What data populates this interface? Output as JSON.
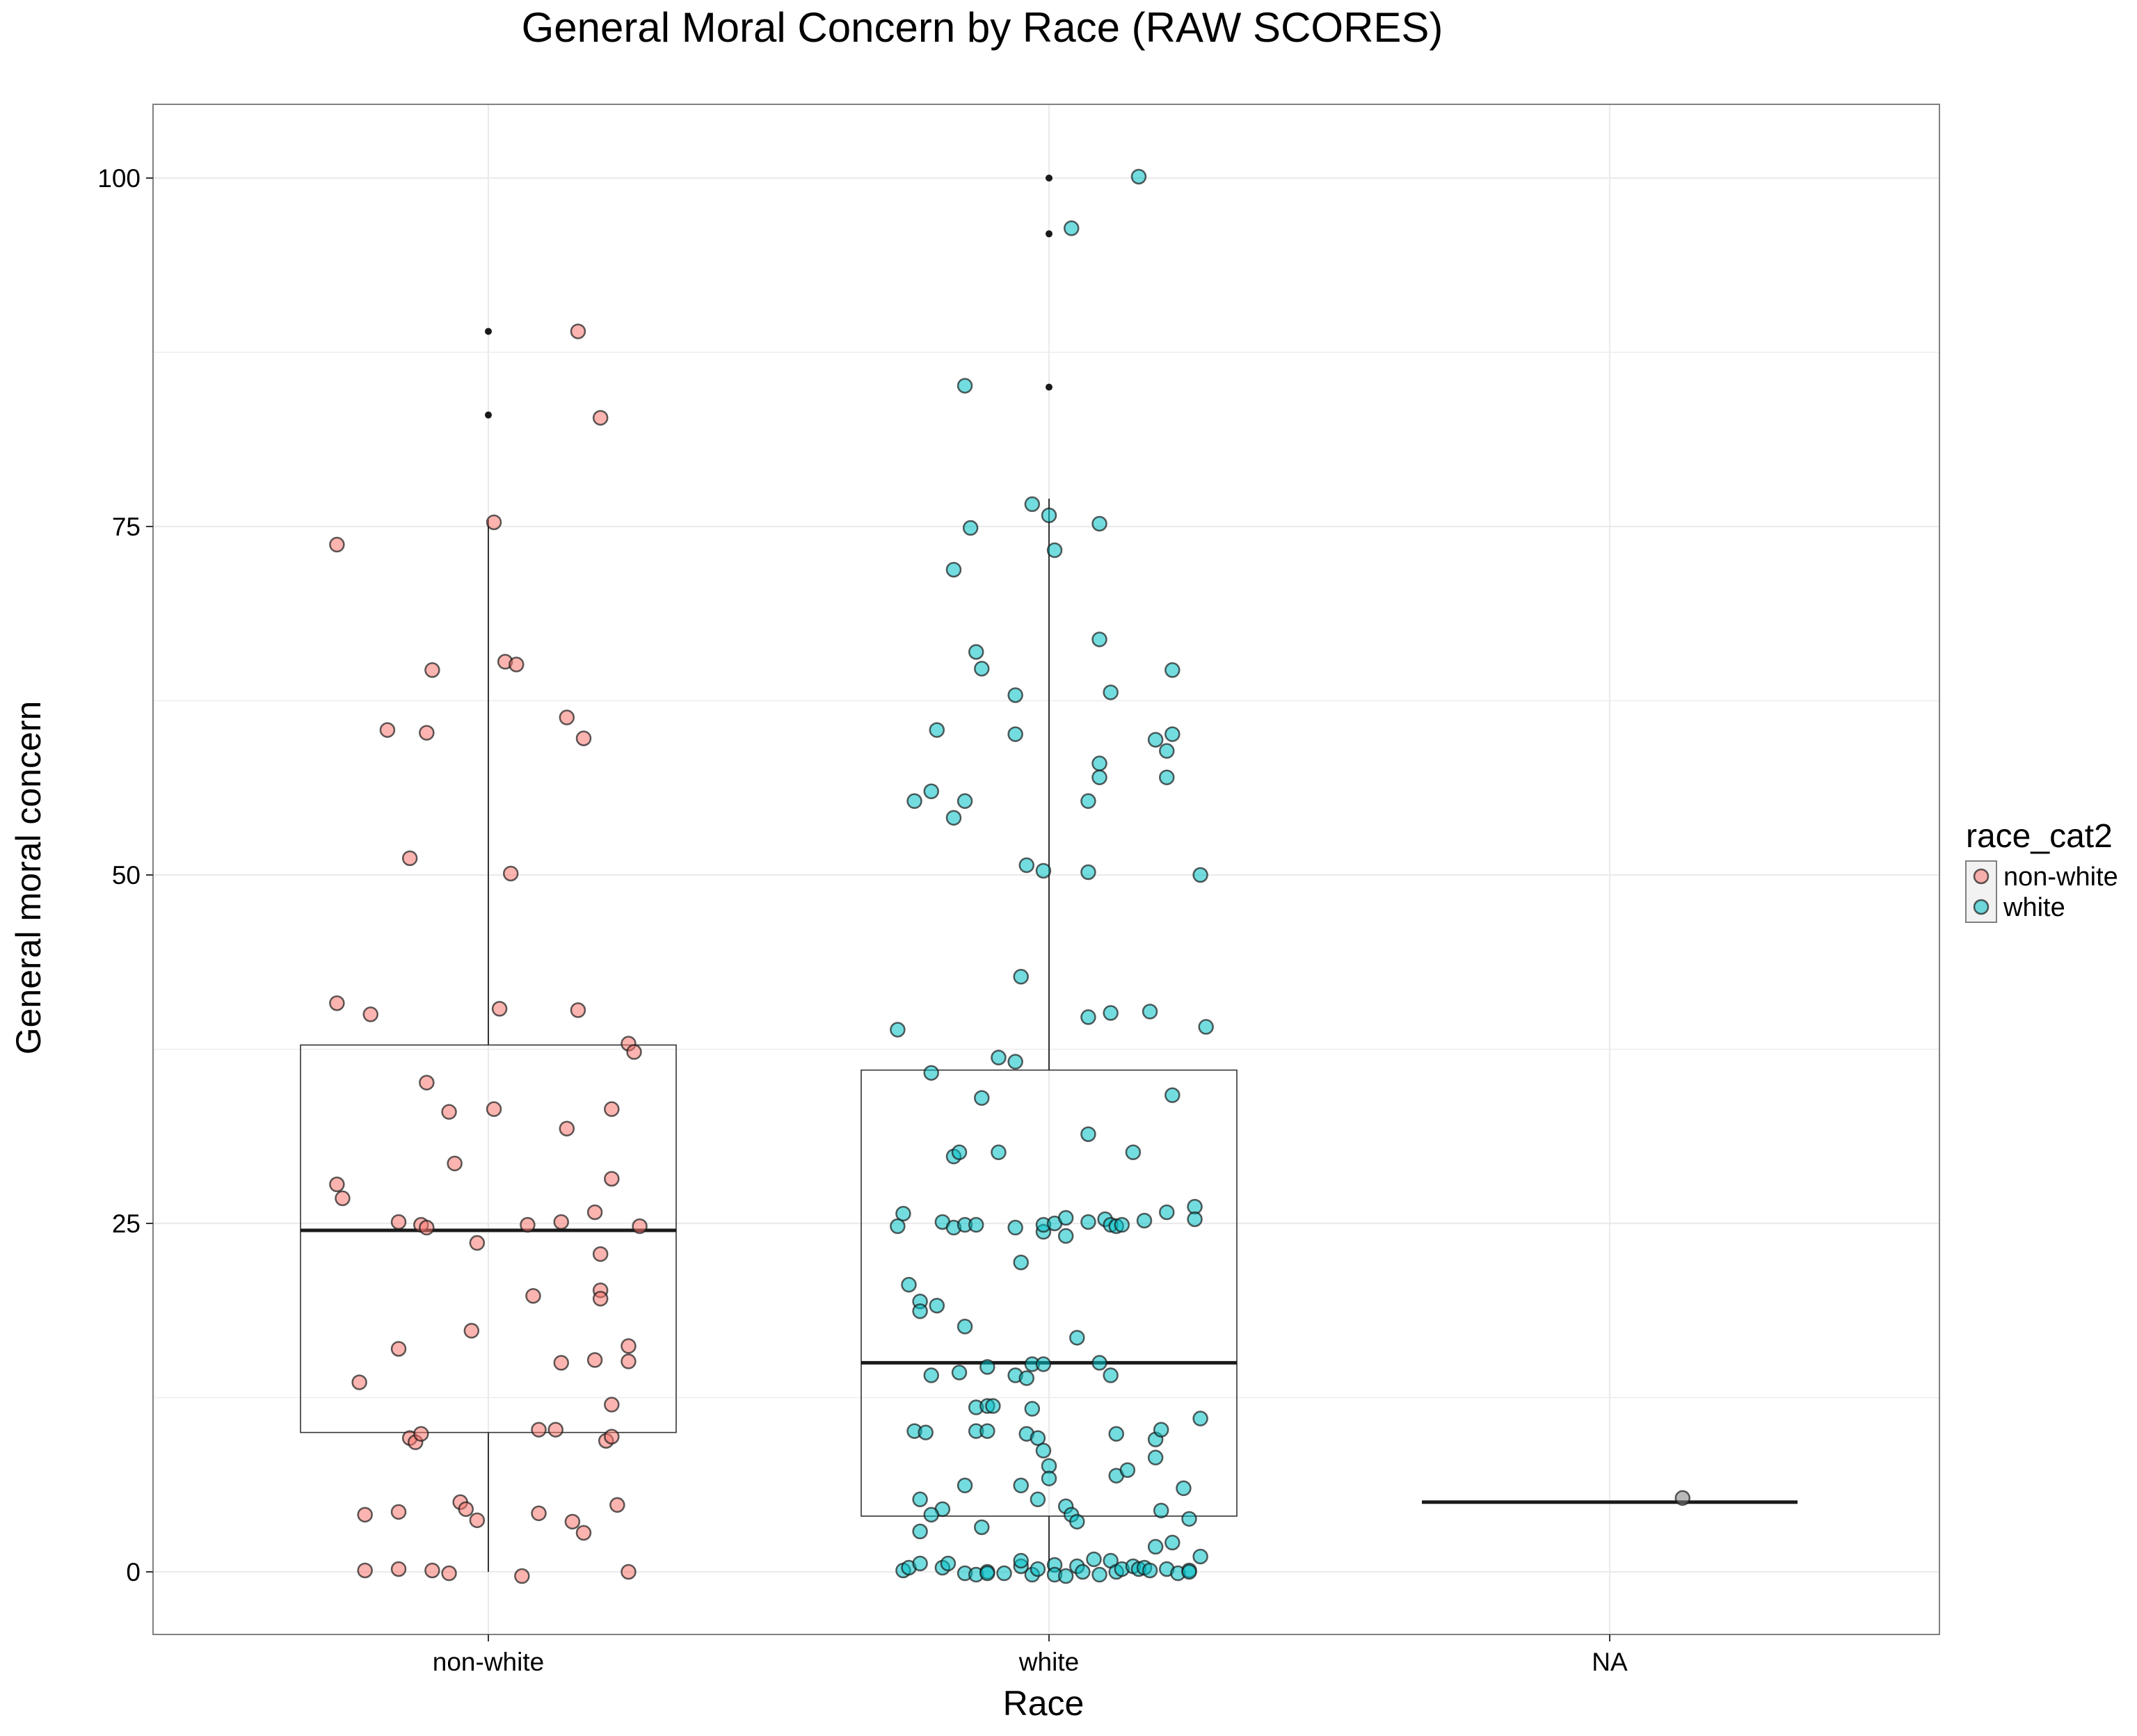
{
  "chart_data": {
    "type": "boxplot-with-jitter",
    "title": "General Moral Concern by Race (RAW SCORES)",
    "xlabel": "Race",
    "ylabel": "General moral concern",
    "categories": [
      "non-white",
      "white",
      "NA"
    ],
    "ylim": [
      -5,
      105
    ],
    "yticks": [
      0,
      25,
      50,
      75,
      100
    ],
    "grid": true,
    "legend": {
      "title": "race_cat2",
      "position": "right",
      "entries": [
        {
          "label": "non-white",
          "color": "#F8766D"
        },
        {
          "label": "white",
          "color": "#00BFC4"
        }
      ]
    },
    "colors": {
      "non-white": "#F8766D",
      "white": "#00BFC4",
      "NA": "#7F7F7F",
      "panel_border": "#808080",
      "grid": "#ebebeb"
    },
    "boxes": [
      {
        "category": "non-white",
        "q1": 10,
        "median": 24.5,
        "q3": 37.8,
        "whisker_low": 0,
        "whisker_high": 75.5,
        "outliers": [
          83,
          89
        ]
      },
      {
        "category": "white",
        "q1": 4,
        "median": 15,
        "q3": 36,
        "whisker_low": 0,
        "whisker_high": 77,
        "outliers": [
          85,
          96,
          100
        ]
      },
      {
        "category": "NA",
        "q1": 5,
        "median": 5,
        "q3": 5,
        "whisker_low": 5,
        "whisker_high": 5,
        "outliers": []
      }
    ],
    "points": {
      "non-white": [
        [
          -0.27,
          73.7
        ],
        [
          -0.18,
          60.4
        ],
        [
          -0.11,
          60.2
        ],
        [
          -0.1,
          64.7
        ],
        [
          -0.14,
          51.2
        ],
        [
          0.01,
          75.3
        ],
        [
          0.03,
          65.3
        ],
        [
          0.05,
          65.1
        ],
        [
          0.04,
          50.1
        ],
        [
          0.16,
          89.0
        ],
        [
          0.2,
          82.8
        ],
        [
          0.14,
          61.3
        ],
        [
          0.17,
          59.8
        ],
        [
          -0.27,
          40.8
        ],
        [
          -0.21,
          40.0
        ],
        [
          0.02,
          40.4
        ],
        [
          0.16,
          40.3
        ],
        [
          0.25,
          37.9
        ],
        [
          0.26,
          37.3
        ],
        [
          -0.11,
          35.1
        ],
        [
          -0.07,
          33.0
        ],
        [
          0.01,
          33.2
        ],
        [
          0.14,
          31.8
        ],
        [
          0.22,
          33.2
        ],
        [
          -0.06,
          29.3
        ],
        [
          -0.27,
          27.8
        ],
        [
          -0.26,
          26.8
        ],
        [
          0.22,
          28.2
        ],
        [
          -0.16,
          25.1
        ],
        [
          -0.12,
          24.9
        ],
        [
          -0.11,
          24.7
        ],
        [
          -0.02,
          23.6
        ],
        [
          0.07,
          24.9
        ],
        [
          0.13,
          25.1
        ],
        [
          0.19,
          25.8
        ],
        [
          0.2,
          22.8
        ],
        [
          0.27,
          24.8
        ],
        [
          0.2,
          20.2
        ],
        [
          0.2,
          19.6
        ],
        [
          0.08,
          19.8
        ],
        [
          -0.03,
          17.3
        ],
        [
          -0.16,
          16.0
        ],
        [
          -0.23,
          13.6
        ],
        [
          0.13,
          15.0
        ],
        [
          0.19,
          15.2
        ],
        [
          0.25,
          16.2
        ],
        [
          0.25,
          15.1
        ],
        [
          0.22,
          12.0
        ],
        [
          -0.14,
          9.6
        ],
        [
          -0.13,
          9.3
        ],
        [
          -0.12,
          9.9
        ],
        [
          0.09,
          10.2
        ],
        [
          0.12,
          10.2
        ],
        [
          0.21,
          9.4
        ],
        [
          0.22,
          9.7
        ],
        [
          -0.22,
          4.1
        ],
        [
          -0.16,
          4.3
        ],
        [
          -0.05,
          5.0
        ],
        [
          -0.04,
          4.5
        ],
        [
          -0.02,
          3.7
        ],
        [
          0.09,
          4.2
        ],
        [
          0.15,
          3.6
        ],
        [
          0.17,
          2.8
        ],
        [
          0.23,
          4.8
        ],
        [
          -0.22,
          0.1
        ],
        [
          -0.16,
          0.2
        ],
        [
          -0.1,
          0.1
        ],
        [
          -0.07,
          -0.1
        ],
        [
          0.06,
          -0.3
        ],
        [
          0.25,
          0.0
        ]
      ],
      "white": [
        [
          0.16,
          100.1
        ],
        [
          0.04,
          96.4
        ],
        [
          -0.15,
          85.1
        ],
        [
          -0.03,
          76.6
        ],
        [
          0.0,
          75.8
        ],
        [
          0.09,
          75.2
        ],
        [
          -0.14,
          74.9
        ],
        [
          0.01,
          73.3
        ],
        [
          -0.17,
          71.9
        ],
        [
          0.09,
          66.9
        ],
        [
          -0.13,
          66.0
        ],
        [
          -0.12,
          64.8
        ],
        [
          0.22,
          64.7
        ],
        [
          0.11,
          63.1
        ],
        [
          -0.06,
          62.9
        ],
        [
          -0.2,
          60.4
        ],
        [
          -0.06,
          60.1
        ],
        [
          0.19,
          59.7
        ],
        [
          0.22,
          60.1
        ],
        [
          0.21,
          58.9
        ],
        [
          0.09,
          58.0
        ],
        [
          0.09,
          57.0
        ],
        [
          0.21,
          57.0
        ],
        [
          -0.21,
          56.0
        ],
        [
          -0.24,
          55.3
        ],
        [
          -0.15,
          55.3
        ],
        [
          0.07,
          55.3
        ],
        [
          -0.17,
          54.1
        ],
        [
          -0.04,
          50.7
        ],
        [
          -0.01,
          50.3
        ],
        [
          0.07,
          50.2
        ],
        [
          0.27,
          50.0
        ],
        [
          -0.05,
          42.7
        ],
        [
          0.07,
          39.8
        ],
        [
          0.11,
          40.1
        ],
        [
          0.18,
          40.2
        ],
        [
          0.28,
          39.1
        ],
        [
          -0.27,
          38.9
        ],
        [
          -0.09,
          36.9
        ],
        [
          -0.06,
          36.6
        ],
        [
          -0.21,
          35.8
        ],
        [
          0.22,
          34.2
        ],
        [
          -0.12,
          34.0
        ],
        [
          0.07,
          31.4
        ],
        [
          -0.17,
          29.8
        ],
        [
          -0.16,
          30.1
        ],
        [
          -0.09,
          30.1
        ],
        [
          0.15,
          30.1
        ],
        [
          -0.26,
          25.7
        ],
        [
          -0.27,
          24.8
        ],
        [
          -0.19,
          25.1
        ],
        [
          -0.17,
          24.7
        ],
        [
          -0.15,
          24.9
        ],
        [
          -0.13,
          24.9
        ],
        [
          -0.06,
          24.7
        ],
        [
          -0.01,
          24.4
        ],
        [
          -0.01,
          24.9
        ],
        [
          0.01,
          25.0
        ],
        [
          0.03,
          25.4
        ],
        [
          0.03,
          24.1
        ],
        [
          0.07,
          25.1
        ],
        [
          0.1,
          25.3
        ],
        [
          0.11,
          24.9
        ],
        [
          0.12,
          24.8
        ],
        [
          0.13,
          24.9
        ],
        [
          0.17,
          25.2
        ],
        [
          0.21,
          25.8
        ],
        [
          0.26,
          26.2
        ],
        [
          0.26,
          25.3
        ],
        [
          -0.05,
          22.2
        ],
        [
          -0.25,
          20.6
        ],
        [
          -0.23,
          19.4
        ],
        [
          -0.23,
          18.7
        ],
        [
          -0.2,
          19.1
        ],
        [
          -0.15,
          17.6
        ],
        [
          0.05,
          16.8
        ],
        [
          -0.11,
          14.7
        ],
        [
          -0.06,
          14.1
        ],
        [
          -0.04,
          13.9
        ],
        [
          -0.03,
          14.9
        ],
        [
          -0.01,
          14.9
        ],
        [
          0.09,
          15.0
        ],
        [
          0.11,
          14.1
        ],
        [
          -0.21,
          14.1
        ],
        [
          -0.16,
          14.3
        ],
        [
          -0.13,
          11.8
        ],
        [
          -0.11,
          11.9
        ],
        [
          -0.1,
          11.9
        ],
        [
          -0.03,
          11.7
        ],
        [
          0.27,
          11.0
        ],
        [
          -0.24,
          10.1
        ],
        [
          -0.22,
          10.0
        ],
        [
          -0.13,
          10.1
        ],
        [
          -0.11,
          10.1
        ],
        [
          -0.04,
          9.9
        ],
        [
          -0.02,
          9.6
        ],
        [
          0.12,
          9.9
        ],
        [
          0.19,
          9.5
        ],
        [
          0.2,
          10.2
        ],
        [
          -0.01,
          8.7
        ],
        [
          0.19,
          8.2
        ],
        [
          0.0,
          7.6
        ],
        [
          0.0,
          6.7
        ],
        [
          0.12,
          6.9
        ],
        [
          0.14,
          7.3
        ],
        [
          0.24,
          6.0
        ],
        [
          -0.15,
          6.2
        ],
        [
          -0.05,
          6.2
        ],
        [
          -0.23,
          5.2
        ],
        [
          -0.19,
          4.5
        ],
        [
          -0.02,
          5.2
        ],
        [
          0.03,
          4.7
        ],
        [
          0.04,
          4.1
        ],
        [
          0.05,
          3.6
        ],
        [
          0.2,
          4.4
        ],
        [
          0.25,
          3.8
        ],
        [
          -0.21,
          4.1
        ],
        [
          -0.23,
          2.9
        ],
        [
          -0.12,
          3.2
        ],
        [
          -0.26,
          0.1
        ],
        [
          -0.25,
          0.3
        ],
        [
          -0.23,
          0.6
        ],
        [
          -0.19,
          0.3
        ],
        [
          -0.18,
          0.6
        ],
        [
          -0.15,
          -0.1
        ],
        [
          -0.13,
          -0.2
        ],
        [
          -0.11,
          0.0
        ],
        [
          -0.11,
          -0.1
        ],
        [
          -0.08,
          -0.1
        ],
        [
          -0.05,
          0.4
        ],
        [
          -0.05,
          0.8
        ],
        [
          -0.03,
          -0.2
        ],
        [
          -0.02,
          0.2
        ],
        [
          0.01,
          0.5
        ],
        [
          0.01,
          -0.2
        ],
        [
          0.03,
          -0.3
        ],
        [
          0.05,
          0.4
        ],
        [
          0.06,
          0.0
        ],
        [
          0.08,
          0.9
        ],
        [
          0.09,
          -0.2
        ],
        [
          0.11,
          0.8
        ],
        [
          0.12,
          0.0
        ],
        [
          0.13,
          0.2
        ],
        [
          0.15,
          0.4
        ],
        [
          0.16,
          0.2
        ],
        [
          0.17,
          0.3
        ],
        [
          0.18,
          0.1
        ],
        [
          0.19,
          1.8
        ],
        [
          0.21,
          0.2
        ],
        [
          0.22,
          2.1
        ],
        [
          0.23,
          -0.1
        ],
        [
          0.25,
          0.1
        ],
        [
          0.25,
          0.0
        ],
        [
          0.27,
          1.1
        ]
      ],
      "NA": [
        [
          0.13,
          5.3
        ]
      ]
    }
  }
}
